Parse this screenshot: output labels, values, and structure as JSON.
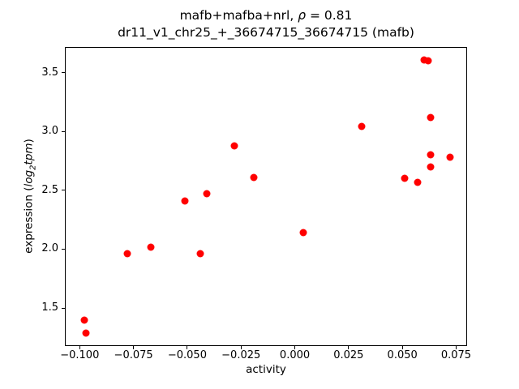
{
  "figure": {
    "title_line1": {
      "pre": "mafb+mafba+nrl, ",
      "rho": "ρ",
      "post": " = 0.81"
    },
    "title_line2": "dr11_v1_chr25_+_36674715_36674715 (mafb)",
    "ylabel_segments": {
      "pre": "expression (",
      "log": "log",
      "sub": "2",
      "tpm": "tpm",
      "post": ")"
    }
  },
  "chart_data": {
    "type": "scatter",
    "title": "mafb+mafba+nrl, ρ = 0.81",
    "subtitle": "dr11_v1_chr25_+_36674715_36674715 (mafb)",
    "xlabel": "activity",
    "ylabel": "expression (log2tpm)",
    "marker_color": "#ff0000",
    "background_color": "#ffffff",
    "grid": false,
    "legend": false,
    "xlim": [
      -0.1069,
      0.0801
    ],
    "ylim": [
      1.177,
      3.718
    ],
    "x_ticks": [
      -0.1,
      -0.075,
      -0.05,
      -0.025,
      0.0,
      0.025,
      0.05,
      0.075
    ],
    "x_tick_labels": [
      "−0.100",
      "−0.075",
      "−0.050",
      "−0.025",
      "0.000",
      "0.025",
      "0.050",
      "0.075"
    ],
    "y_ticks": [
      1.5,
      2.0,
      2.5,
      3.0,
      3.5
    ],
    "y_tick_labels": [
      "1.5",
      "2.0",
      "2.5",
      "3.0",
      "3.5"
    ],
    "points": [
      [
        -0.098,
        1.4
      ],
      [
        -0.097,
        1.29
      ],
      [
        -0.078,
        1.96
      ],
      [
        -0.067,
        2.02
      ],
      [
        -0.051,
        2.41
      ],
      [
        -0.044,
        1.96
      ],
      [
        -0.041,
        2.47
      ],
      [
        -0.028,
        2.88
      ],
      [
        -0.019,
        2.61
      ],
      [
        0.004,
        2.14
      ],
      [
        0.031,
        3.04
      ],
      [
        0.051,
        2.6
      ],
      [
        0.057,
        2.57
      ],
      [
        0.06,
        3.61
      ],
      [
        0.062,
        3.6
      ],
      [
        0.063,
        3.12
      ],
      [
        0.063,
        2.8
      ],
      [
        0.063,
        2.7
      ],
      [
        0.072,
        2.78
      ]
    ],
    "rho": 0.81
  }
}
